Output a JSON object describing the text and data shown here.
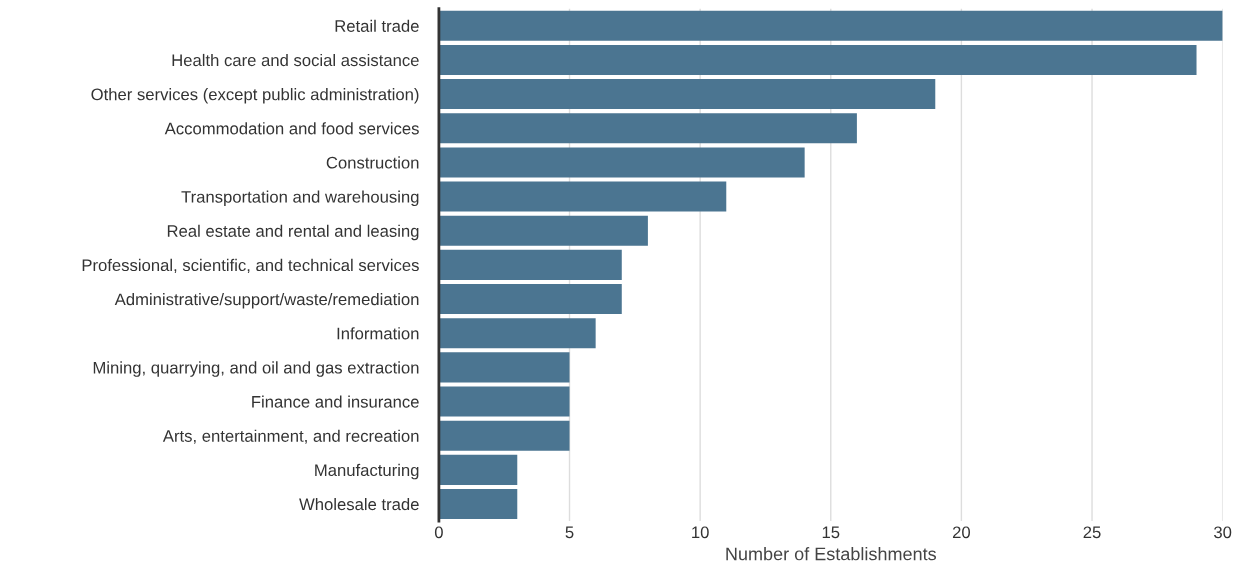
{
  "chart_data": {
    "type": "bar",
    "orientation": "horizontal",
    "xlabel": "Number of Establishments",
    "categories": [
      "Retail trade",
      "Health care and social assistance",
      "Other services (except public administration)",
      "Accommodation and food services",
      "Construction",
      "Transportation and warehousing",
      "Real estate and rental and leasing",
      "Professional, scientific, and technical services",
      "Administrative/support/waste/remediation",
      "Information",
      "Mining, quarrying, and oil and gas extraction",
      "Finance and insurance",
      "Arts, entertainment, and recreation",
      "Manufacturing",
      "Wholesale trade"
    ],
    "values": [
      30,
      29,
      19,
      16,
      14,
      11,
      8,
      7,
      7,
      6,
      5,
      5,
      5,
      3,
      3
    ],
    "color": "#4b7591",
    "xlim": [
      0,
      30
    ],
    "xticks": [
      0,
      5,
      10,
      15,
      20,
      25,
      30
    ],
    "grid": "x"
  }
}
